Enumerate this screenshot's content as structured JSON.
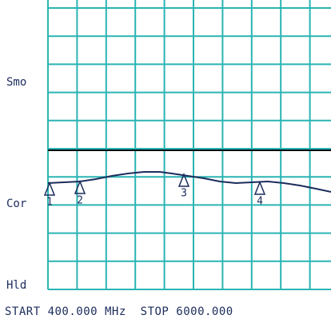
{
  "side_labels": [
    "Smo",
    "Cor",
    "Hld"
  ],
  "footer": "START 400.000 MHz  STOP 6000.000",
  "markers": [
    "1",
    "2",
    "3",
    "4"
  ]
}
